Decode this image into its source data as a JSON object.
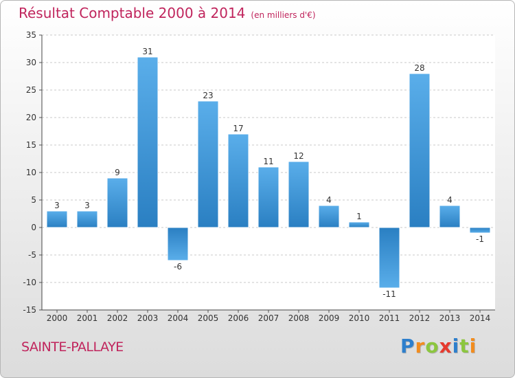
{
  "title": "Résultat Comptable 2000 à 2014",
  "subtitle": "(en milliers d'€)",
  "commune": "SAINTE-PALLAYE",
  "logo": {
    "letters": [
      "P",
      "r",
      "o",
      "x",
      "i",
      "t",
      "i"
    ],
    "colors": [
      "#2e7fcc",
      "#f28c1e",
      "#8cc63f",
      "#e63a2e",
      "#2e7fcc",
      "#8cc63f",
      "#f28c1e"
    ]
  },
  "colors": {
    "title": "#c0245c",
    "bar_light": "#5aaeea",
    "bar_dark": "#2a7fc2"
  },
  "chart_data": {
    "type": "bar",
    "title": "Résultat Comptable 2000 à 2014",
    "xlabel": "",
    "ylabel": "",
    "categories": [
      "2000",
      "2001",
      "2002",
      "2003",
      "2004",
      "2005",
      "2006",
      "2007",
      "2008",
      "2009",
      "2010",
      "2011",
      "2012",
      "2013",
      "2014"
    ],
    "values": [
      3,
      3,
      9,
      31,
      -6,
      23,
      17,
      11,
      12,
      4,
      1,
      -11,
      28,
      4,
      -1
    ],
    "value_labels": [
      "3",
      "3",
      "9",
      "31",
      "-6",
      "23",
      "17",
      "11",
      "12",
      "4",
      "1",
      "-11",
      "28",
      "4",
      "-1"
    ],
    "ylim": [
      -15,
      35
    ],
    "yticks": [
      35,
      30,
      25,
      20,
      15,
      10,
      5,
      0,
      -5,
      -10,
      -15
    ],
    "ytick_labels": [
      "35",
      "30",
      "25",
      "20",
      "15",
      "10",
      "5",
      "0",
      "-5",
      "-10",
      "-15"
    ],
    "grid": "horizontal dashed"
  }
}
